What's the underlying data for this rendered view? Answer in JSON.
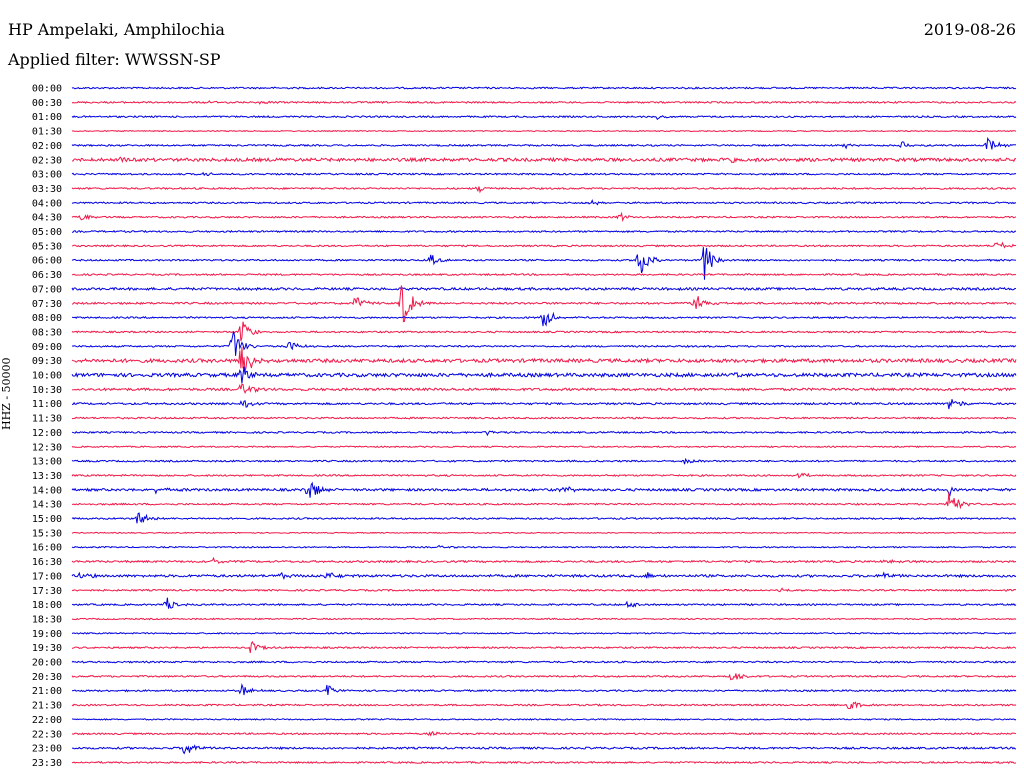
{
  "header": {
    "station": "HP Ampelaki, Amphilochia",
    "date": "2019-08-26",
    "filter_label": "Applied filter:",
    "filter_value": "WWSSN-SP"
  },
  "channel_label": "HHZ - 50000",
  "colors": {
    "trace_even": "#0000e0",
    "trace_odd": "#f01848",
    "background": "#ffffff",
    "text": "#000000"
  },
  "rows": [
    {
      "time": "00:00",
      "color": "blue",
      "noise": 1,
      "events": []
    },
    {
      "time": "00:30",
      "color": "red",
      "noise": 1,
      "events": [
        {
          "t": 0.14,
          "amp": 2
        },
        {
          "t": 0.2,
          "amp": 2
        }
      ]
    },
    {
      "time": "01:00",
      "color": "blue",
      "noise": 1,
      "events": [
        {
          "t": 0.62,
          "amp": 2
        }
      ]
    },
    {
      "time": "01:30",
      "color": "red",
      "noise": 0.6,
      "events": []
    },
    {
      "time": "02:00",
      "color": "blue",
      "noise": 1,
      "events": [
        {
          "t": 0.82,
          "amp": 3
        },
        {
          "t": 0.88,
          "amp": 4
        },
        {
          "t": 0.97,
          "amp": 8
        }
      ]
    },
    {
      "time": "02:30",
      "color": "red",
      "noise": 2,
      "events": [
        {
          "t": 0.05,
          "amp": 3
        },
        {
          "t": 0.7,
          "amp": 3
        }
      ]
    },
    {
      "time": "03:00",
      "color": "blue",
      "noise": 1,
      "events": [
        {
          "t": 0.14,
          "amp": 2
        }
      ]
    },
    {
      "time": "03:30",
      "color": "red",
      "noise": 1,
      "events": [
        {
          "t": 0.43,
          "amp": 4
        }
      ]
    },
    {
      "time": "04:00",
      "color": "blue",
      "noise": 1,
      "events": [
        {
          "t": 0.55,
          "amp": 3
        }
      ]
    },
    {
      "time": "04:30",
      "color": "red",
      "noise": 1,
      "events": [
        {
          "t": 0.01,
          "amp": 4
        },
        {
          "t": 0.58,
          "amp": 5
        }
      ]
    },
    {
      "time": "05:00",
      "color": "blue",
      "noise": 1,
      "events": []
    },
    {
      "time": "05:30",
      "color": "red",
      "noise": 1,
      "events": [
        {
          "t": 0.98,
          "amp": 5
        }
      ]
    },
    {
      "time": "06:00",
      "color": "blue",
      "noise": 1,
      "events": [
        {
          "t": 0.38,
          "amp": 6
        },
        {
          "t": 0.6,
          "amp": 22
        },
        {
          "t": 0.67,
          "amp": 20
        }
      ]
    },
    {
      "time": "06:30",
      "color": "red",
      "noise": 1,
      "events": []
    },
    {
      "time": "07:00",
      "color": "blue",
      "noise": 1.5,
      "events": []
    },
    {
      "time": "07:30",
      "color": "red",
      "noise": 1.2,
      "events": [
        {
          "t": 0.3,
          "amp": 8
        },
        {
          "t": 0.35,
          "amp": 26
        },
        {
          "t": 0.66,
          "amp": 12
        }
      ]
    },
    {
      "time": "08:00",
      "color": "blue",
      "noise": 1,
      "events": [
        {
          "t": 0.5,
          "amp": 12
        }
      ]
    },
    {
      "time": "08:30",
      "color": "red",
      "noise": 1,
      "events": [
        {
          "t": 0.18,
          "amp": 14
        }
      ]
    },
    {
      "time": "09:00",
      "color": "blue",
      "noise": 1,
      "events": [
        {
          "t": 0.17,
          "amp": 18
        },
        {
          "t": 0.23,
          "amp": 6
        }
      ]
    },
    {
      "time": "09:30",
      "color": "red",
      "noise": 2.2,
      "events": [
        {
          "t": 0.18,
          "amp": 26
        }
      ]
    },
    {
      "time": "10:00",
      "color": "blue",
      "noise": 2.2,
      "events": [
        {
          "t": 0.18,
          "amp": 12
        },
        {
          "t": 0.7,
          "amp": 5
        }
      ]
    },
    {
      "time": "10:30",
      "color": "red",
      "noise": 1.5,
      "events": [
        {
          "t": 0.18,
          "amp": 8
        }
      ]
    },
    {
      "time": "11:00",
      "color": "blue",
      "noise": 1.2,
      "events": [
        {
          "t": 0.18,
          "amp": 6
        },
        {
          "t": 0.93,
          "amp": 8
        }
      ]
    },
    {
      "time": "11:30",
      "color": "red",
      "noise": 1,
      "events": []
    },
    {
      "time": "12:00",
      "color": "blue",
      "noise": 1,
      "events": [
        {
          "t": 0.44,
          "amp": 3
        }
      ]
    },
    {
      "time": "12:30",
      "color": "red",
      "noise": 0.8,
      "events": []
    },
    {
      "time": "13:00",
      "color": "blue",
      "noise": 1,
      "events": [
        {
          "t": 0.65,
          "amp": 4
        }
      ]
    },
    {
      "time": "13:30",
      "color": "red",
      "noise": 1,
      "events": [
        {
          "t": 0.77,
          "amp": 3
        }
      ]
    },
    {
      "time": "14:00",
      "color": "blue",
      "noise": 1.5,
      "events": [
        {
          "t": 0.09,
          "amp": 4
        },
        {
          "t": 0.25,
          "amp": 14
        },
        {
          "t": 0.52,
          "amp": 4
        },
        {
          "t": 0.93,
          "amp": 6
        }
      ]
    },
    {
      "time": "14:30",
      "color": "red",
      "noise": 1,
      "events": [
        {
          "t": 0.93,
          "amp": 16
        }
      ]
    },
    {
      "time": "15:00",
      "color": "blue",
      "noise": 1,
      "events": [
        {
          "t": 0.07,
          "amp": 9
        }
      ]
    },
    {
      "time": "15:30",
      "color": "red",
      "noise": 0.6,
      "events": []
    },
    {
      "time": "16:00",
      "color": "blue",
      "noise": 0.8,
      "events": [
        {
          "t": 0.39,
          "amp": 2
        }
      ]
    },
    {
      "time": "16:30",
      "color": "red",
      "noise": 1.2,
      "events": [
        {
          "t": 0.15,
          "amp": 3
        },
        {
          "t": 0.86,
          "amp": 3
        }
      ]
    },
    {
      "time": "17:00",
      "color": "blue",
      "noise": 1.5,
      "events": [
        {
          "t": 0.01,
          "amp": 4
        },
        {
          "t": 0.22,
          "amp": 3
        },
        {
          "t": 0.27,
          "amp": 4
        },
        {
          "t": 0.61,
          "amp": 4
        },
        {
          "t": 0.86,
          "amp": 4
        }
      ]
    },
    {
      "time": "17:30",
      "color": "red",
      "noise": 1,
      "events": [
        {
          "t": 0.75,
          "amp": 3
        }
      ]
    },
    {
      "time": "18:00",
      "color": "blue",
      "noise": 1,
      "events": [
        {
          "t": 0.1,
          "amp": 8
        },
        {
          "t": 0.59,
          "amp": 5
        }
      ]
    },
    {
      "time": "18:30",
      "color": "red",
      "noise": 0.8,
      "events": []
    },
    {
      "time": "19:00",
      "color": "blue",
      "noise": 0.8,
      "events": []
    },
    {
      "time": "19:30",
      "color": "red",
      "noise": 1,
      "events": [
        {
          "t": 0.19,
          "amp": 7
        }
      ]
    },
    {
      "time": "20:00",
      "color": "blue",
      "noise": 1,
      "events": []
    },
    {
      "time": "20:30",
      "color": "red",
      "noise": 1,
      "events": [
        {
          "t": 0.7,
          "amp": 6
        }
      ]
    },
    {
      "time": "21:00",
      "color": "blue",
      "noise": 1,
      "events": [
        {
          "t": 0.18,
          "amp": 6
        },
        {
          "t": 0.27,
          "amp": 6
        }
      ]
    },
    {
      "time": "21:30",
      "color": "red",
      "noise": 1,
      "events": [
        {
          "t": 0.82,
          "amp": 9
        }
      ]
    },
    {
      "time": "22:00",
      "color": "blue",
      "noise": 0.8,
      "events": []
    },
    {
      "time": "22:30",
      "color": "red",
      "noise": 1,
      "events": [
        {
          "t": 0.38,
          "amp": 4
        }
      ]
    },
    {
      "time": "23:00",
      "color": "blue",
      "noise": 1.2,
      "events": [
        {
          "t": 0.12,
          "amp": 12
        }
      ]
    },
    {
      "time": "23:30",
      "color": "red",
      "noise": 1,
      "events": []
    }
  ]
}
